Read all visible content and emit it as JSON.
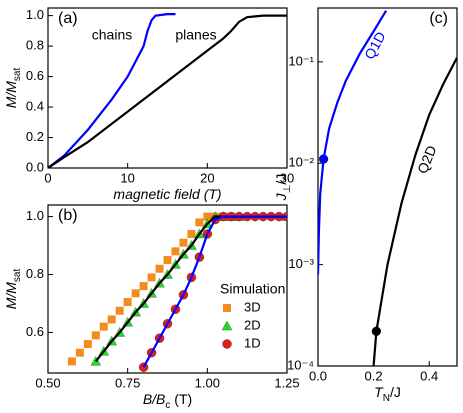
{
  "chart_data": [
    {
      "type": "line",
      "title": "(a)",
      "xlabel": [
        "magnetic field (T)"
      ],
      "ylabel": [
        "M/M",
        "sat"
      ],
      "xlim": [
        0,
        30
      ],
      "xticks": [
        0,
        10,
        20,
        30
      ],
      "ylim": [
        0,
        1.05
      ],
      "yticks": [
        {
          "value": 0,
          "label": "0.0"
        },
        0.2,
        0.4,
        0.6,
        0.8,
        {
          "value": 1,
          "label": "1.0"
        }
      ],
      "annotations": [
        {
          "text": "chains",
          "color": "#000000"
        },
        {
          "text": "planes",
          "color": "#000000"
        }
      ],
      "series": [
        {
          "name": "chains",
          "line_color": "#0000ff",
          "x": [
            0,
            2,
            5,
            8,
            10,
            11,
            12,
            12.5,
            13,
            13.5,
            15,
            16
          ],
          "values": [
            0,
            0.08,
            0.25,
            0.45,
            0.6,
            0.7,
            0.8,
            0.9,
            0.97,
            1.0,
            1.01,
            1.01
          ]
        },
        {
          "name": "planes",
          "line_color": "#000000",
          "x": [
            0,
            2,
            5,
            10,
            15,
            20,
            22,
            23,
            24,
            25,
            27,
            30
          ],
          "values": [
            0,
            0.07,
            0.17,
            0.37,
            0.57,
            0.77,
            0.85,
            0.9,
            0.96,
            0.99,
            1.0,
            1.0
          ]
        }
      ]
    },
    {
      "type": "scatter",
      "title": "(b)",
      "xlabel": [
        "B/B",
        "c",
        " (T)"
      ],
      "ylabel": [
        "M/M",
        "sat"
      ],
      "xlim": [
        0.5,
        1.25
      ],
      "xticks": [
        {
          "value": 0.5,
          "label": "0.50"
        },
        {
          "value": 0.75,
          "label": "0.75"
        },
        {
          "value": 1,
          "label": "1.00"
        },
        {
          "value": 1.25,
          "label": "1.25"
        }
      ],
      "ylim": [
        0.46,
        1.04
      ],
      "yticks": [
        0.6,
        0.8,
        {
          "value": 1,
          "label": "1.0"
        }
      ],
      "legend_title": "Simulation",
      "legend": "lower right",
      "series": [
        {
          "name": "3D",
          "marker": "square",
          "color": "#f28c1e",
          "x": [
            0.575,
            0.6,
            0.625,
            0.65,
            0.675,
            0.7,
            0.725,
            0.75,
            0.775,
            0.8,
            0.825,
            0.85,
            0.875,
            0.9,
            0.925,
            0.95,
            0.975,
            1.0,
            1.025,
            1.05,
            1.075
          ],
          "values": [
            0.5,
            0.53,
            0.56,
            0.59,
            0.62,
            0.645,
            0.675,
            0.705,
            0.735,
            0.76,
            0.79,
            0.82,
            0.85,
            0.88,
            0.91,
            0.94,
            0.98,
            1.0,
            1.0,
            1.0,
            1.0
          ]
        },
        {
          "name": "2D",
          "marker": "triangle",
          "color": "#22dd22",
          "line_color": "#000000",
          "x": [
            0.65,
            0.675,
            0.7,
            0.725,
            0.75,
            0.775,
            0.8,
            0.825,
            0.85,
            0.875,
            0.9,
            0.925,
            0.95,
            0.975,
            1.0,
            1.025,
            1.05,
            1.075,
            1.1,
            1.25
          ],
          "values": [
            0.5,
            0.535,
            0.57,
            0.6,
            0.635,
            0.67,
            0.7,
            0.735,
            0.77,
            0.8,
            0.835,
            0.87,
            0.9,
            0.94,
            0.975,
            1.0,
            1.0,
            1.0,
            1.0,
            1.0
          ]
        },
        {
          "name": "1D",
          "marker": "circle",
          "color": "#e41a1c",
          "line_color": "#0000ff",
          "x": [
            0.8,
            0.825,
            0.85,
            0.875,
            0.9,
            0.925,
            0.95,
            0.975,
            1.0,
            1.025,
            1.05,
            1.075,
            1.1,
            1.125,
            1.15,
            1.175,
            1.2,
            1.225,
            1.25
          ],
          "values": [
            0.48,
            0.53,
            0.58,
            0.63,
            0.68,
            0.73,
            0.79,
            0.86,
            0.94,
            0.99,
            1.0,
            1.0,
            1.0,
            1.0,
            1.0,
            1.0,
            1.0,
            1.0,
            1.0
          ]
        }
      ]
    },
    {
      "type": "line",
      "title": "(c)",
      "log_y": true,
      "xlabel": [
        "T",
        "N",
        "/J"
      ],
      "ylabel": [
        "J",
        "⊥",
        "/J"
      ],
      "xlim": [
        0,
        0.5
      ],
      "xticks": [
        {
          "value": 0,
          "label": "0.0"
        },
        0.2,
        0.4
      ],
      "ylim": [
        0.0001,
        0.34
      ],
      "yticks": [
        {
          "value": 0.0001,
          "label": "10⁻⁴"
        },
        {
          "value": 0.001,
          "label": "10⁻³"
        },
        {
          "value": 0.01,
          "label": "10⁻²"
        },
        {
          "value": 0.1,
          "label": "10⁻¹"
        }
      ],
      "annotations": [
        {
          "text": "Q1D",
          "color": "#0000ff"
        },
        {
          "text": "Q2D",
          "color": "#000000"
        }
      ],
      "series": [
        {
          "name": "Q1D",
          "line_color": "#0000ff",
          "x": [
            0,
            0.003,
            0.008,
            0.02,
            0.04,
            0.07,
            0.1,
            0.15,
            0.2,
            0.245
          ],
          "values": [
            0.0008,
            0.002,
            0.005,
            0.011,
            0.022,
            0.04,
            0.065,
            0.12,
            0.2,
            0.32
          ]
        },
        {
          "name": "Q2D",
          "line_color": "#000000",
          "x": [
            0.2,
            0.21,
            0.25,
            0.3,
            0.35,
            0.4,
            0.45,
            0.5
          ],
          "values": [
            0.0001,
            0.00022,
            0.001,
            0.004,
            0.012,
            0.03,
            0.06,
            0.11
          ]
        },
        {
          "marker": "circle",
          "color": "#0000ff",
          "x": [
            0.02
          ],
          "values": [
            0.011
          ]
        },
        {
          "marker": "circle",
          "color": "#000000",
          "x": [
            0.21
          ],
          "values": [
            0.00022
          ]
        }
      ]
    }
  ]
}
